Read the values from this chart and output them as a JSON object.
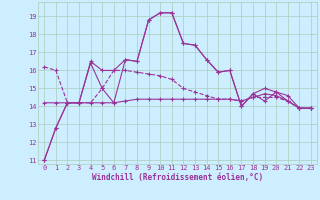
{
  "xlabel": "Windchill (Refroidissement éolien,°C)",
  "bg_color": "#cceeff",
  "grid_color": "#aaccbb",
  "line_color": "#993399",
  "xlim": [
    -0.5,
    23.5
  ],
  "ylim": [
    10.8,
    19.8
  ],
  "yticks": [
    11,
    12,
    13,
    14,
    15,
    16,
    17,
    18,
    19
  ],
  "xticks": [
    0,
    1,
    2,
    3,
    4,
    5,
    6,
    7,
    8,
    9,
    10,
    11,
    12,
    13,
    14,
    15,
    16,
    17,
    18,
    19,
    20,
    21,
    22,
    23
  ],
  "curves": [
    {
      "y": [
        11.0,
        12.8,
        14.2,
        14.2,
        16.4,
        15.0,
        14.2,
        16.6,
        16.5,
        18.8,
        19.2,
        19.2,
        17.5,
        17.4,
        16.6,
        15.9,
        16.0,
        14.0,
        14.7,
        15.0,
        14.8,
        14.6,
        13.9,
        13.9
      ],
      "ls": "-"
    },
    {
      "y": [
        11.0,
        12.8,
        14.2,
        14.2,
        16.5,
        16.0,
        16.0,
        16.6,
        16.5,
        18.8,
        19.2,
        19.2,
        17.5,
        17.4,
        16.6,
        15.9,
        16.0,
        14.0,
        14.7,
        14.3,
        14.8,
        14.3,
        13.9,
        13.9
      ],
      "ls": "-"
    },
    {
      "y": [
        14.2,
        14.2,
        14.2,
        14.2,
        14.2,
        14.2,
        14.2,
        14.3,
        14.4,
        14.4,
        14.4,
        14.4,
        14.4,
        14.4,
        14.4,
        14.4,
        14.4,
        14.3,
        14.5,
        14.7,
        14.6,
        14.3,
        13.9,
        13.9
      ],
      "ls": "-"
    },
    {
      "y": [
        16.2,
        16.0,
        14.2,
        14.2,
        14.2,
        15.0,
        16.0,
        16.0,
        15.9,
        15.8,
        15.7,
        15.5,
        15.0,
        14.8,
        14.6,
        14.4,
        14.4,
        14.3,
        14.5,
        14.5,
        14.5,
        14.3,
        13.9,
        13.9
      ],
      "ls": "--"
    }
  ],
  "marker": "+",
  "markersize": 3,
  "linewidth": 0.8,
  "xlabel_fontsize": 5.5,
  "tick_fontsize": 5
}
